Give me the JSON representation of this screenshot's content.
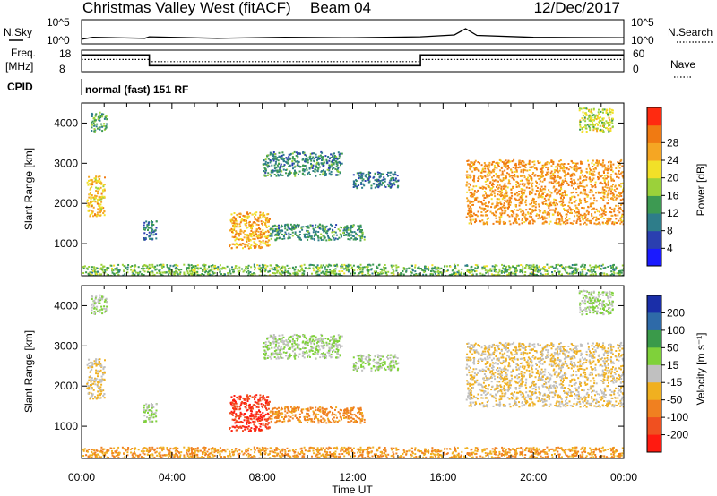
{
  "header": {
    "title": "Christmas Valley West (fitACF)",
    "beam": "Beam 04",
    "date": "12/Dec/2017",
    "program": "normal (fast) 151 RF"
  },
  "panels": {
    "nsky": {
      "left_label": "N.Sky",
      "right_label": "N.Search",
      "left_ticks": [
        "10^5",
        "10^0"
      ],
      "right_ticks": [
        "10^5",
        "10^0"
      ]
    },
    "freq": {
      "left_label_1": "Freq.",
      "left_label_2": "[MHz]",
      "right_label": "Nave",
      "left_ticks": [
        "18",
        "8"
      ],
      "right_ticks": [
        "60",
        "0"
      ]
    },
    "cpid_label": "CPID"
  },
  "axes": {
    "xlabel": "Time UT",
    "xticks": [
      "00:00",
      "04:00",
      "08:00",
      "12:00",
      "16:00",
      "20:00",
      "00:00"
    ],
    "ylabel": "Slant Range [km]",
    "yticks": [
      "1000",
      "2000",
      "3000",
      "4000"
    ],
    "yrange_km": [
      200,
      4500
    ],
    "xrange_hours": [
      0,
      24
    ]
  },
  "colorbars": {
    "power": {
      "label": "Power [dB]",
      "ticks": [
        "4",
        "8",
        "12",
        "16",
        "20",
        "24",
        "28"
      ],
      "colors": [
        "#1a1aff",
        "#2a3fb0",
        "#2e7d8a",
        "#3d9a52",
        "#9bd13a",
        "#f2e028",
        "#f5a623",
        "#f07a12",
        "#ff2a10"
      ]
    },
    "velocity": {
      "label": "Velocity [m s⁻¹]",
      "ticks": [
        "200",
        "100",
        "50",
        "15",
        "-15",
        "-50",
        "-100",
        "-200"
      ],
      "colors": [
        "#1a2ea8",
        "#2e6aa8",
        "#3a9a4a",
        "#7fd13a",
        "#c0c0c0",
        "#f0b020",
        "#f08020",
        "#f05020",
        "#ff1a10"
      ]
    }
  },
  "chart_data": [
    {
      "type": "line",
      "title": "",
      "series": [
        {
          "name": "N.Sky",
          "x": [
            0.0,
            0.5,
            2.8,
            3.0,
            6.0,
            9.0,
            12.0,
            15.0,
            16.5,
            17.0,
            17.5,
            20.0,
            24.0
          ],
          "values": [
            0.4,
            0.8,
            0.6,
            0.9,
            0.6,
            0.8,
            0.7,
            0.9,
            1.3,
            2.6,
            1.2,
            0.8,
            0.7
          ]
        }
      ],
      "ylim": [
        0,
        5
      ]
    },
    {
      "type": "line",
      "title": "",
      "series": [
        {
          "name": "Freq",
          "x": [
            0.0,
            3.0,
            3.0,
            15.0,
            15.0,
            24.0
          ],
          "values": [
            15.8,
            15.8,
            10.8,
            10.8,
            15.8,
            15.8
          ]
        },
        {
          "name": "Nave",
          "x": [
            0.0,
            3.0,
            3.0,
            15.0,
            15.0,
            24.0
          ],
          "values": [
            34,
            34,
            28,
            28,
            34,
            34
          ]
        }
      ],
      "ylim": [
        8,
        18
      ]
    },
    {
      "type": "heatmap",
      "title": "",
      "xlabel": "Time UT",
      "ylabel": "Slant Range [km]",
      "colorbar_label": "Power [dB]",
      "xlim": [
        0,
        24
      ],
      "ylim": [
        200,
        4500
      ],
      "regions": [
        {
          "x": [
            0.2,
            1.0
          ],
          "y": [
            1700,
            2700
          ],
          "power_db": 24,
          "velocity": -15
        },
        {
          "x": [
            0.4,
            1.1
          ],
          "y": [
            3800,
            4300
          ],
          "power_db": 14,
          "velocity": 15
        },
        {
          "x": [
            2.7,
            3.3
          ],
          "y": [
            1100,
            1600
          ],
          "power_db": 10,
          "velocity": 15
        },
        {
          "x": [
            6.5,
            8.3
          ],
          "y": [
            900,
            1800
          ],
          "power_db": 26,
          "velocity": -200
        },
        {
          "x": [
            8.3,
            12.5
          ],
          "y": [
            1100,
            1500
          ],
          "power_db": 12,
          "velocity": -60
        },
        {
          "x": [
            8.0,
            11.5
          ],
          "y": [
            2700,
            3300
          ],
          "power_db": 12,
          "velocity": 15
        },
        {
          "x": [
            12.0,
            14.0
          ],
          "y": [
            2400,
            2800
          ],
          "power_db": 10,
          "velocity": 15
        },
        {
          "x": [
            17.0,
            24.0
          ],
          "y": [
            1500,
            3100
          ],
          "power_db": 28,
          "velocity": -15
        },
        {
          "x": [
            22.0,
            23.5
          ],
          "y": [
            3800,
            4400
          ],
          "power_db": 20,
          "velocity": 15
        },
        {
          "x": [
            0.0,
            24.0
          ],
          "y": [
            200,
            500
          ],
          "power_db": 16,
          "velocity": -50
        }
      ]
    }
  ]
}
